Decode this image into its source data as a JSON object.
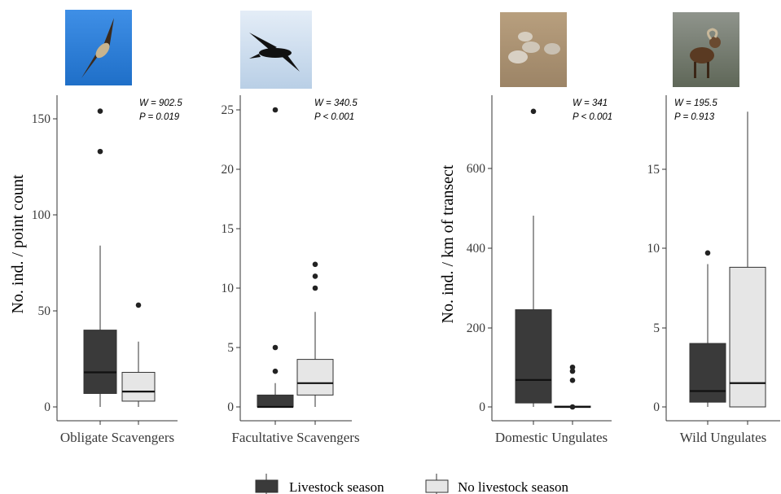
{
  "chart_data": [
    {
      "type": "box",
      "category": "Obligate Scavengers",
      "image": "vulture-photo",
      "stat_lines": [
        "W = 902.5",
        "P = 0.019"
      ],
      "ylabel": "No. ind. / point count",
      "ylim": [
        -2,
        162
      ],
      "yticks": [
        "0",
        "50",
        "100",
        "150"
      ],
      "series": [
        {
          "name": "Livestock season",
          "q1": 7,
          "median": 18,
          "q3": 40,
          "whisker_low": 0,
          "whisker_high": 84,
          "outliers": [
            133,
            154
          ]
        },
        {
          "name": "No livestock season",
          "q1": 3,
          "median": 8,
          "q3": 18,
          "whisker_low": 0,
          "whisker_high": 34,
          "outliers": [
            53
          ]
        }
      ]
    },
    {
      "type": "box",
      "category": "Facultative Scavengers",
      "image": "raven-photo",
      "stat_lines": [
        "W = 340.5",
        "P < 0.001"
      ],
      "ylabel": "",
      "ylim": [
        -0.3,
        26.5
      ],
      "yticks": [
        "0",
        "5",
        "10",
        "15",
        "20",
        "25"
      ],
      "series": [
        {
          "name": "Livestock season",
          "q1": 0,
          "median": 0,
          "q3": 1,
          "whisker_low": 0,
          "whisker_high": 2,
          "outliers": [
            3,
            5,
            25
          ]
        },
        {
          "name": "No livestock season",
          "q1": 1,
          "median": 2,
          "q3": 4,
          "whisker_low": 0,
          "whisker_high": 8,
          "outliers": [
            10,
            11,
            12
          ]
        }
      ]
    },
    {
      "type": "box",
      "category": "Domestic Ungulates",
      "image": "sheep-photo",
      "stat_lines": [
        "W = 341",
        "P < 0.001"
      ],
      "ylabel": "No. ind. / km of transect",
      "ylim": [
        -10,
        770
      ],
      "yticks": [
        "0",
        "200",
        "400",
        "600"
      ],
      "series": [
        {
          "name": "Livestock season",
          "q1": 10,
          "median": 68,
          "q3": 245,
          "whisker_low": 0,
          "whisker_high": 482,
          "outliers": [
            745
          ]
        },
        {
          "name": "No livestock season",
          "q1": 0,
          "median": 0,
          "q3": 2,
          "whisker_low": 0,
          "whisker_high": 4,
          "outliers": [
            0,
            67,
            90,
            100
          ]
        }
      ]
    },
    {
      "type": "box",
      "category": "Wild Ungulates",
      "image": "mouflon-photo",
      "stat_lines": [
        "W = 195.5",
        "P = 0.913"
      ],
      "ylabel": "",
      "ylim": [
        -0.3,
        19.5
      ],
      "yticks": [
        "0",
        "5",
        "10",
        "15"
      ],
      "series": [
        {
          "name": "Livestock season",
          "q1": 0.3,
          "median": 1,
          "q3": 4,
          "whisker_low": 0,
          "whisker_high": 9,
          "outliers": [
            9.7
          ]
        },
        {
          "name": "No livestock season",
          "q1": 0,
          "median": 1.5,
          "q3": 8.8,
          "whisker_low": 0,
          "whisker_high": 18.6,
          "outliers": []
        }
      ]
    }
  ],
  "legend": {
    "position": "bottom",
    "items": [
      {
        "label": "Livestock season",
        "color": "#3a3a3a"
      },
      {
        "label": "No livestock season",
        "color": "#e6e6e6"
      }
    ]
  },
  "colors": {
    "livestock": "#3a3a3a",
    "no_livestock": "#e6e6e6",
    "sky": "#2f80d8",
    "sky_light": "#cfdff0"
  }
}
